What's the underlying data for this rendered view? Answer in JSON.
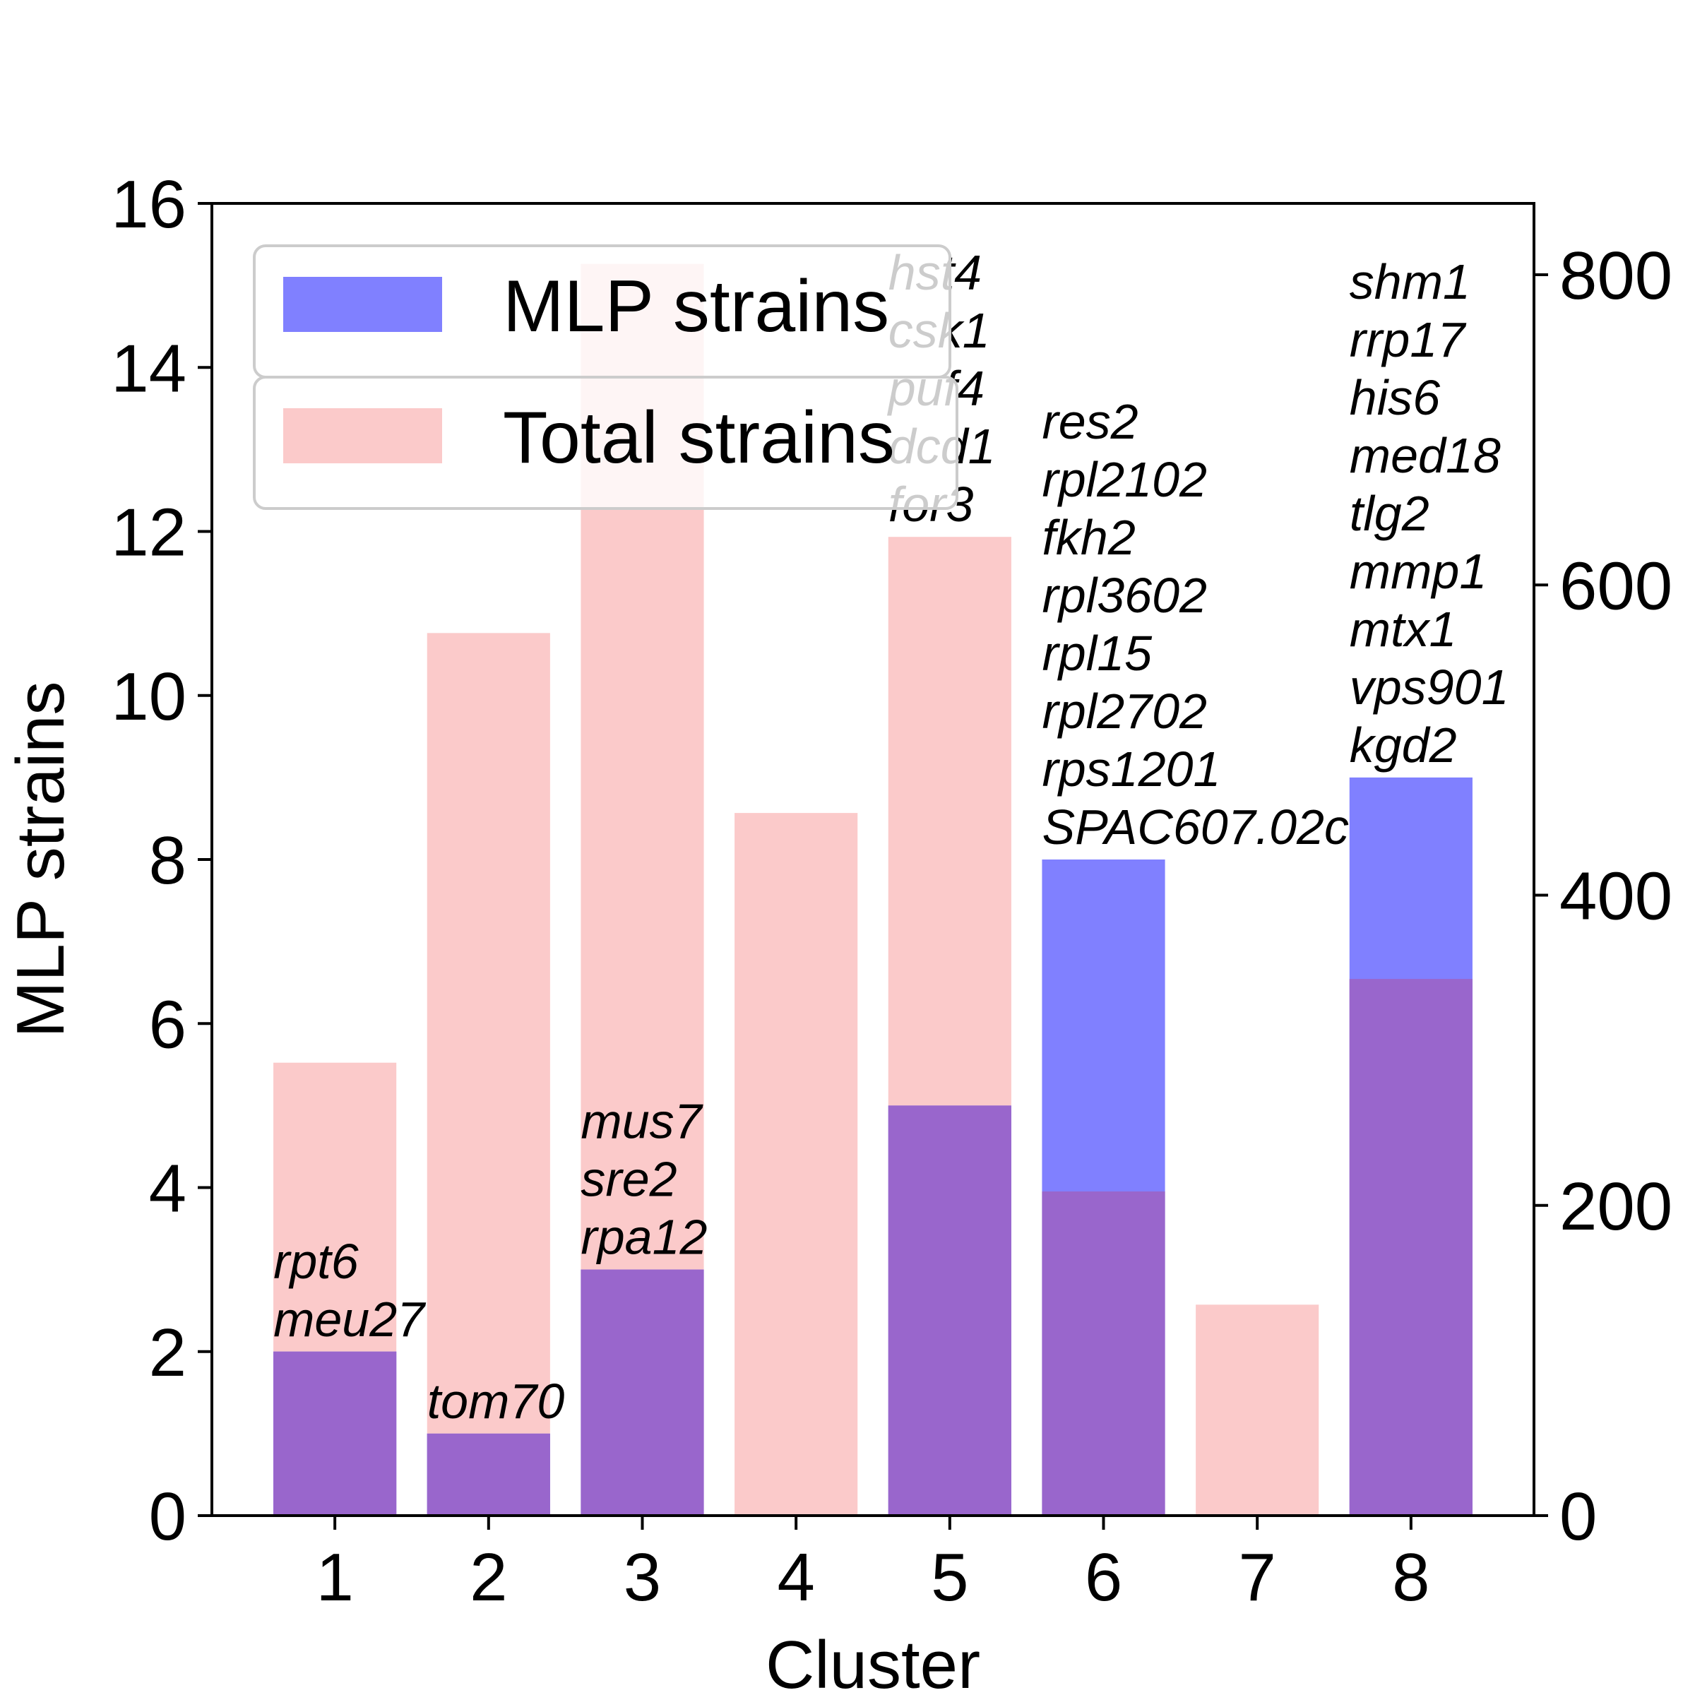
{
  "chart_data": {
    "type": "bar",
    "title": "",
    "xlabel": "Cluster",
    "ylabel": "MLP strains",
    "y2label": "",
    "categories": [
      "1",
      "2",
      "3",
      "4",
      "5",
      "6",
      "7",
      "8"
    ],
    "ylim": [
      0,
      16
    ],
    "y2lim": [
      0,
      846
    ],
    "yticks": [
      "0",
      "2",
      "4",
      "6",
      "8",
      "10",
      "12",
      "14",
      "16"
    ],
    "y2ticks": [
      "0",
      "200",
      "400",
      "600",
      "800"
    ],
    "grid": false,
    "legend_position": "top-left",
    "series": [
      {
        "name": "MLP strains",
        "axis": "left",
        "color": "#8080ff",
        "values": [
          2,
          1,
          3,
          0,
          5,
          8,
          0,
          9
        ]
      },
      {
        "name": "Total strains",
        "axis": "right",
        "color": "#fbcaca",
        "values": [
          292,
          569,
          807,
          453,
          631,
          209,
          136,
          346
        ]
      }
    ],
    "overlap_color": "#9966cc",
    "annotations": [
      {
        "cluster": "1",
        "genes": [
          "rpt6",
          "meu27"
        ]
      },
      {
        "cluster": "2",
        "genes": [
          "tom70"
        ]
      },
      {
        "cluster": "3",
        "genes": [
          "mus7",
          "sre2",
          "rpa12"
        ]
      },
      {
        "cluster": "4",
        "genes": []
      },
      {
        "cluster": "5",
        "genes": [
          "hst4",
          "csk1",
          "puf4",
          "dcd1",
          "for3"
        ]
      },
      {
        "cluster": "6",
        "genes": [
          "res2",
          "rpl2102",
          "fkh2",
          "rpl3602",
          "rpl15",
          "rpl2702",
          "rps1201",
          "SPAC607.02c"
        ]
      },
      {
        "cluster": "7",
        "genes": []
      },
      {
        "cluster": "8",
        "genes": [
          "shm1",
          "rrp17",
          "his6",
          "med18",
          "tlg2",
          "mmp1",
          "mtx1",
          "vps901",
          "kgd2"
        ]
      }
    ]
  }
}
